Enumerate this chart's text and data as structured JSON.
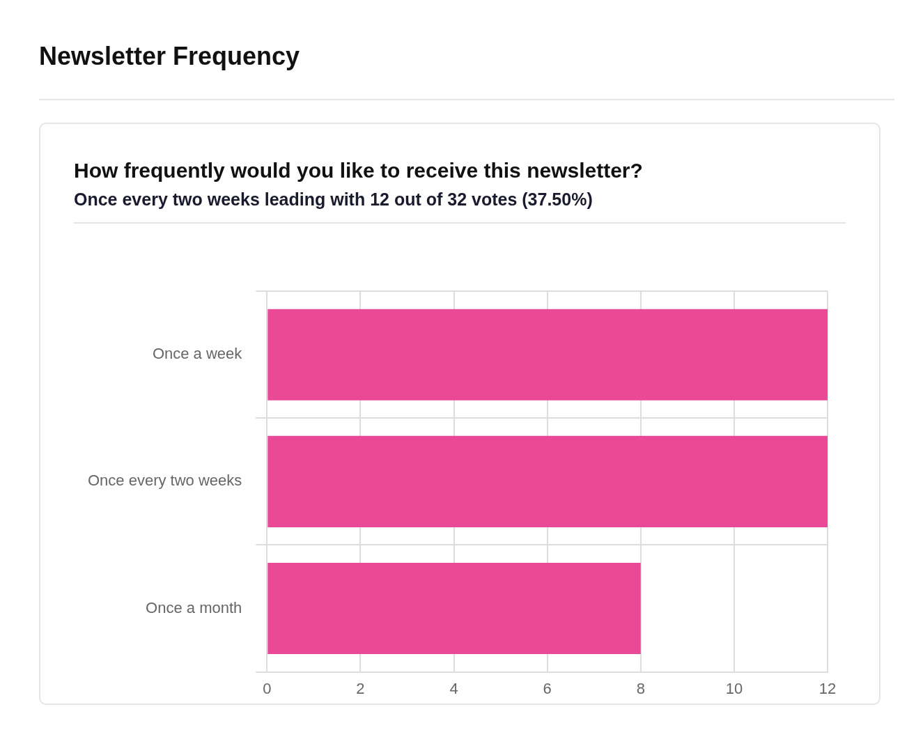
{
  "chart_data": {
    "type": "bar",
    "title": "Newsletter Frequency",
    "subtitle": "How frequently would you like to receive this newsletter?",
    "annotations": [
      "Once every two weeks leading with 12 out of 32 votes (37.50%)"
    ],
    "orientation": "horizontal",
    "categories": [
      "Once a week",
      "Once every two weeks",
      "Once a month"
    ],
    "values": [
      12,
      12,
      8
    ],
    "color": "#ea4998",
    "xlim": [
      0,
      12
    ],
    "xticks": [
      0,
      2,
      4,
      6,
      8,
      10,
      12
    ],
    "grid": true,
    "legend": false
  }
}
